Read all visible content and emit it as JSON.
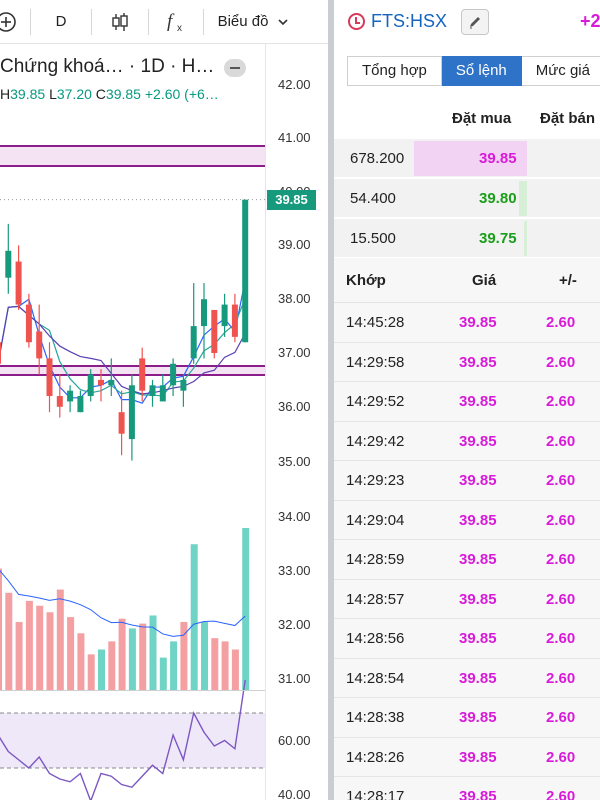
{
  "toolbar": {
    "interval_label": "D",
    "chart_menu_label": "Biểu đồ"
  },
  "chart": {
    "symbol_line": "Chứng khoá… · 1D · H…",
    "ohlc": {
      "h_key": "H",
      "h": "39.85",
      "l_key": "L",
      "l": "37.20",
      "c_key": "C",
      "c": "39.85",
      "change": "+2.60 (+6…"
    },
    "last_price": "39.85",
    "price_ticks": [
      "42.00",
      "41.00",
      "40.00",
      "39.00",
      "38.00",
      "37.00",
      "36.00",
      "35.00",
      "34.00",
      "33.00",
      "32.00",
      "31.00"
    ],
    "rsi_ticks": [
      "60.00",
      "40.00"
    ],
    "candles": [
      {
        "o": 37.2,
        "h": 37.7,
        "l": 36.6,
        "c": 36.8
      },
      {
        "o": 38.4,
        "h": 39.4,
        "l": 38.1,
        "c": 38.9
      },
      {
        "o": 38.7,
        "h": 39.0,
        "l": 37.8,
        "c": 37.9
      },
      {
        "o": 37.9,
        "h": 38.1,
        "l": 37.1,
        "c": 37.2
      },
      {
        "o": 37.4,
        "h": 37.9,
        "l": 36.6,
        "c": 36.9
      },
      {
        "o": 36.9,
        "h": 37.2,
        "l": 35.9,
        "c": 36.2
      },
      {
        "o": 36.2,
        "h": 36.6,
        "l": 35.8,
        "c": 36.0
      },
      {
        "o": 36.1,
        "h": 36.4,
        "l": 35.9,
        "c": 36.3
      },
      {
        "o": 35.9,
        "h": 36.3,
        "l": 35.9,
        "c": 36.2
      },
      {
        "o": 36.2,
        "h": 36.7,
        "l": 36.1,
        "c": 36.6
      },
      {
        "o": 36.5,
        "h": 36.7,
        "l": 36.1,
        "c": 36.4
      },
      {
        "o": 36.4,
        "h": 36.9,
        "l": 36.2,
        "c": 36.5
      },
      {
        "o": 35.9,
        "h": 36.3,
        "l": 35.1,
        "c": 35.5
      },
      {
        "o": 35.4,
        "h": 36.6,
        "l": 35.0,
        "c": 36.4
      },
      {
        "o": 36.9,
        "h": 37.1,
        "l": 36.1,
        "c": 36.3
      },
      {
        "o": 36.2,
        "h": 36.5,
        "l": 36.0,
        "c": 36.4
      },
      {
        "o": 36.1,
        "h": 36.6,
        "l": 36.1,
        "c": 36.4
      },
      {
        "o": 36.4,
        "h": 36.9,
        "l": 36.2,
        "c": 36.8
      },
      {
        "o": 36.3,
        "h": 36.6,
        "l": 36.0,
        "c": 36.5
      },
      {
        "o": 36.9,
        "h": 38.3,
        "l": 36.8,
        "c": 37.5
      },
      {
        "o": 37.5,
        "h": 38.3,
        "l": 36.9,
        "c": 38.0
      },
      {
        "o": 37.8,
        "h": 37.8,
        "l": 36.9,
        "c": 37.0
      },
      {
        "o": 37.5,
        "h": 38.1,
        "l": 37.3,
        "c": 37.9
      },
      {
        "o": 37.9,
        "h": 38.1,
        "l": 37.2,
        "c": 37.3
      },
      {
        "o": 37.2,
        "h": 39.85,
        "l": 37.2,
        "c": 39.85
      }
    ],
    "volume": [
      {
        "v": 0.75,
        "up": false
      },
      {
        "v": 0.6,
        "up": false
      },
      {
        "v": 0.42,
        "up": false
      },
      {
        "v": 0.55,
        "up": false
      },
      {
        "v": 0.52,
        "up": false
      },
      {
        "v": 0.48,
        "up": false
      },
      {
        "v": 0.62,
        "up": false
      },
      {
        "v": 0.45,
        "up": false
      },
      {
        "v": 0.35,
        "up": false
      },
      {
        "v": 0.22,
        "up": false
      },
      {
        "v": 0.25,
        "up": true
      },
      {
        "v": 0.3,
        "up": false
      },
      {
        "v": 0.44,
        "up": false
      },
      {
        "v": 0.38,
        "up": true
      },
      {
        "v": 0.41,
        "up": false
      },
      {
        "v": 0.46,
        "up": true
      },
      {
        "v": 0.2,
        "up": true
      },
      {
        "v": 0.3,
        "up": true
      },
      {
        "v": 0.42,
        "up": false
      },
      {
        "v": 0.9,
        "up": true
      },
      {
        "v": 0.42,
        "up": true
      },
      {
        "v": 0.32,
        "up": false
      },
      {
        "v": 0.3,
        "up": false
      },
      {
        "v": 0.25,
        "up": false
      },
      {
        "v": 1.0,
        "up": true
      }
    ],
    "rsi": [
      52,
      46,
      43,
      40,
      44,
      38,
      36,
      35,
      38,
      28,
      38,
      37,
      34,
      33,
      37,
      41,
      38,
      52,
      43,
      60,
      53,
      48,
      50,
      47,
      72
    ],
    "colors": {
      "up": "#17997e",
      "down": "#ef5350",
      "vol_up": "#6fd3c6",
      "vol_down": "#f4a0a2",
      "band": "#8a1d8a",
      "rsi_line": "#7b57c2",
      "rsi_fill": "#efe8f8"
    }
  },
  "book": {
    "symbol": "FTS:HSX",
    "change": "+2",
    "tabs": [
      {
        "label": "Tổng hợp",
        "active": false
      },
      {
        "label": "Sổ lệnh",
        "active": true
      },
      {
        "label": "Mức giá",
        "active": false
      }
    ],
    "col_bid": "Đặt mua",
    "col_ask": "Đặt bán",
    "levels": [
      {
        "volume": "678.200",
        "price": "39.85",
        "share": 0.9
      },
      {
        "volume": "54.400",
        "price": "39.80",
        "share": 0.07
      },
      {
        "volume": "15.500",
        "price": "39.75",
        "share": 0.02
      }
    ],
    "trades_header": {
      "time": "Khớp",
      "price": "Giá",
      "change": "+/-"
    },
    "trades": [
      {
        "time": "14:45:28",
        "price": "39.85",
        "change": "2.60"
      },
      {
        "time": "14:29:58",
        "price": "39.85",
        "change": "2.60"
      },
      {
        "time": "14:29:52",
        "price": "39.85",
        "change": "2.60"
      },
      {
        "time": "14:29:42",
        "price": "39.85",
        "change": "2.60"
      },
      {
        "time": "14:29:23",
        "price": "39.85",
        "change": "2.60"
      },
      {
        "time": "14:29:04",
        "price": "39.85",
        "change": "2.60"
      },
      {
        "time": "14:28:59",
        "price": "39.85",
        "change": "2.60"
      },
      {
        "time": "14:28:57",
        "price": "39.85",
        "change": "2.60"
      },
      {
        "time": "14:28:56",
        "price": "39.85",
        "change": "2.60"
      },
      {
        "time": "14:28:54",
        "price": "39.85",
        "change": "2.60"
      },
      {
        "time": "14:28:38",
        "price": "39.85",
        "change": "2.60"
      },
      {
        "time": "14:28:26",
        "price": "39.85",
        "change": "2.60"
      },
      {
        "time": "14:28:17",
        "price": "39.85",
        "change": "2.60"
      }
    ]
  }
}
